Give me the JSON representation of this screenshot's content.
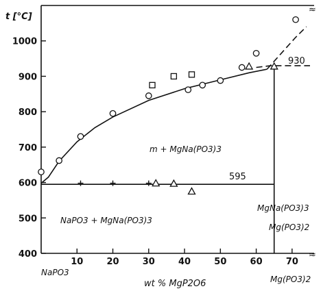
{
  "chart_data": {
    "type": "scatter",
    "title": "",
    "ylabel": "t [°C]",
    "xlabel": "wt  %  MgP2O6",
    "x_end_left": "NaPO3",
    "x_end_right": "Mg(PO3)2",
    "xlim": [
      0,
      75
    ],
    "ylim": [
      400,
      1100
    ],
    "xticks": [
      10,
      20,
      30,
      40,
      50,
      60,
      70
    ],
    "yticks": [
      400,
      500,
      600,
      700,
      800,
      900,
      1000
    ],
    "grid": false,
    "series": [
      {
        "marker": "circle",
        "points": [
          [
            0,
            630
          ],
          [
            5,
            662
          ],
          [
            11,
            730
          ],
          [
            20,
            795
          ],
          [
            30,
            845
          ],
          [
            41,
            862
          ],
          [
            45,
            875
          ],
          [
            50,
            888
          ],
          [
            56,
            925
          ],
          [
            60,
            965
          ],
          [
            71,
            1060
          ]
        ]
      },
      {
        "marker": "square",
        "points": [
          [
            31,
            875
          ],
          [
            37,
            900
          ],
          [
            42,
            905
          ]
        ]
      },
      {
        "marker": "triangle",
        "points": [
          [
            32,
            598
          ],
          [
            37,
            597
          ],
          [
            42,
            575
          ],
          [
            58,
            928
          ],
          [
            65,
            928
          ]
        ]
      },
      {
        "marker": "plus",
        "points": [
          [
            11,
            598
          ],
          [
            20,
            598
          ],
          [
            30,
            598
          ]
        ]
      }
    ],
    "liquidus": [
      [
        0,
        598
      ],
      [
        2,
        615
      ],
      [
        5,
        660
      ],
      [
        10,
        715
      ],
      [
        15,
        755
      ],
      [
        20,
        785
      ],
      [
        30,
        832
      ],
      [
        40,
        865
      ],
      [
        50,
        890
      ],
      [
        58,
        910
      ],
      [
        63,
        920
      ]
    ],
    "liquidus_dashed": [
      [
        63,
        920
      ],
      [
        67,
        965
      ],
      [
        71,
        1010
      ],
      [
        74,
        1040
      ]
    ],
    "dashed_930": [
      [
        60,
        925
      ],
      [
        64,
        930
      ],
      [
        75,
        930
      ]
    ],
    "eutectic_y": 595,
    "eutectic_x": [
      0,
      65
    ],
    "compound_x": 65,
    "annotations": {
      "t930": "930",
      "t595": "595",
      "upper_region": "m + MgNa(PO3)3",
      "lower_region": "NaPO3 + MgNa(PO3)3",
      "compound": "MgNa(PO3)3",
      "compound_lower": "Mg(PO3)2"
    }
  }
}
